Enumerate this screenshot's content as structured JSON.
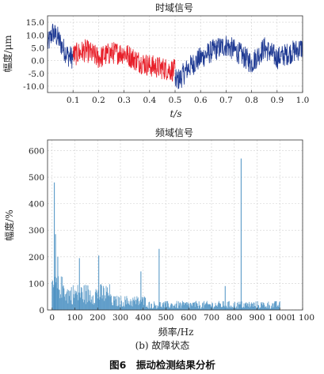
{
  "figure": {
    "caption": "图6　振动检测结果分析",
    "subcaption": "(b) 故障状态"
  },
  "chart_data": [
    {
      "type": "line",
      "title": "时域信号",
      "xlabel": "t/s",
      "ylabel": "幅度/μm",
      "xlim": [
        0,
        1.0
      ],
      "ylim": [
        -12.5,
        17.5
      ],
      "xticks": [
        "0.1",
        "0.2",
        "0.3",
        "0.4",
        "0.5",
        "0.6",
        "0.7",
        "0.8",
        "0.9",
        "1.0"
      ],
      "yticks": [
        "15.0",
        "10.0",
        "5.0",
        "0.0",
        "-5.0",
        "-10.0"
      ],
      "grid": true,
      "series": [
        {
          "color": "#1f3a93",
          "x": [
            0,
            0.02,
            0.04,
            0.06,
            0.08,
            0.1,
            0.5,
            0.52,
            0.55,
            0.6,
            0.65,
            0.7,
            0.75,
            0.8,
            0.85,
            0.9,
            0.95,
            1.0
          ],
          "values": [
            6,
            11,
            9,
            5,
            2,
            1,
            -8,
            -7,
            -3,
            1,
            4,
            6,
            3,
            -1,
            5,
            1,
            3,
            5
          ]
        },
        {
          "color": "#e8202a",
          "x": [
            0.1,
            0.15,
            0.2,
            0.25,
            0.3,
            0.35,
            0.4,
            0.45,
            0.5
          ],
          "values": [
            2,
            4,
            1,
            3,
            3,
            0,
            -2,
            -3,
            -4
          ]
        }
      ]
    },
    {
      "type": "bar",
      "title": "频域信号",
      "xlabel": "频率/Hz",
      "ylabel": "幅度/%",
      "xlim": [
        -20,
        1100
      ],
      "ylim": [
        0,
        640
      ],
      "xticks": [
        "0",
        "100",
        "200",
        "300",
        "400",
        "500",
        "600",
        "700",
        "800",
        "900",
        "1 000",
        "1 100"
      ],
      "yticks": [
        "0",
        "100",
        "200",
        "300",
        "400",
        "500",
        "600"
      ],
      "grid": true,
      "color": "#4a90c2",
      "peaks": [
        {
          "x": 10,
          "y": 480
        },
        {
          "x": 15,
          "y": 285
        },
        {
          "x": 25,
          "y": 200
        },
        {
          "x": 120,
          "y": 195
        },
        {
          "x": 205,
          "y": 205
        },
        {
          "x": 390,
          "y": 145
        },
        {
          "x": 470,
          "y": 230
        },
        {
          "x": 760,
          "y": 90
        },
        {
          "x": 830,
          "y": 570
        }
      ]
    }
  ]
}
